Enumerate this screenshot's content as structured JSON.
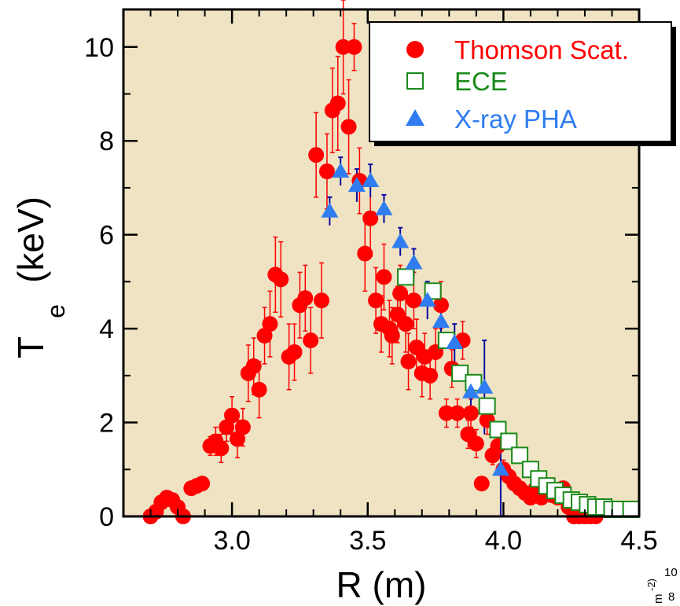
{
  "colors": {
    "plot_bg": "#efe3c3",
    "thomson": "#ff0000",
    "ece": "#1a8a1a",
    "xray": "#2f7df0",
    "xray_err": "#0a0aa0"
  },
  "chart_data": {
    "type": "scatter",
    "xlabel": "R (m)",
    "ylabel_main": "T",
    "ylabel_sub": "e",
    "ylabel_unit": "(keV)",
    "xlim": [
      2.6,
      4.5
    ],
    "ylim": [
      0,
      10.8
    ],
    "x_ticks": [
      {
        "value": 3.0,
        "label": "3.0"
      },
      {
        "value": 3.5,
        "label": "3.5"
      },
      {
        "value": 4.0,
        "label": "4.0"
      },
      {
        "value": 4.5,
        "label": "4.5"
      }
    ],
    "y_ticks": [
      {
        "value": 0,
        "label": "0"
      },
      {
        "value": 2,
        "label": "2"
      },
      {
        "value": 4,
        "label": "4"
      },
      {
        "value": 6,
        "label": "6"
      },
      {
        "value": 8,
        "label": "8"
      },
      {
        "value": 10,
        "label": "10"
      }
    ],
    "legend_position": "top-right",
    "series": [
      {
        "name": "Thomson Scat.",
        "marker": "filled-circle",
        "points": [
          [
            2.7,
            0.0,
            0.0
          ],
          [
            2.72,
            0.1,
            0.0
          ],
          [
            2.74,
            0.3,
            0.0
          ],
          [
            2.76,
            0.4,
            0.0
          ],
          [
            2.78,
            0.35,
            0.0
          ],
          [
            2.8,
            0.2,
            0.0
          ],
          [
            2.82,
            0.0,
            0.0
          ],
          [
            2.85,
            0.6,
            0.0
          ],
          [
            2.87,
            0.65,
            0.0
          ],
          [
            2.89,
            0.7,
            0.0
          ],
          [
            2.92,
            1.5,
            0.2
          ],
          [
            2.94,
            1.6,
            0.3
          ],
          [
            2.96,
            1.45,
            0.3
          ],
          [
            2.98,
            1.9,
            0.3
          ],
          [
            3.0,
            2.15,
            0.4
          ],
          [
            3.02,
            1.65,
            0.4
          ],
          [
            3.04,
            1.9,
            0.4
          ],
          [
            3.06,
            3.05,
            0.6
          ],
          [
            3.08,
            3.2,
            0.6
          ],
          [
            3.1,
            2.7,
            0.6
          ],
          [
            3.12,
            3.85,
            0.6
          ],
          [
            3.14,
            4.1,
            0.7
          ],
          [
            3.16,
            5.15,
            0.8
          ],
          [
            3.18,
            5.05,
            0.8
          ],
          [
            3.21,
            3.4,
            0.7
          ],
          [
            3.23,
            3.5,
            0.6
          ],
          [
            3.25,
            4.5,
            0.7
          ],
          [
            3.27,
            4.65,
            0.7
          ],
          [
            3.29,
            3.75,
            0.7
          ],
          [
            3.31,
            7.7,
            0.9
          ],
          [
            3.33,
            4.6,
            0.8
          ],
          [
            3.35,
            7.35,
            0.8
          ],
          [
            3.37,
            8.65,
            0.9
          ],
          [
            3.39,
            8.8,
            1.0
          ],
          [
            3.41,
            10.0,
            1.0
          ],
          [
            3.43,
            8.3,
            1.0
          ],
          [
            3.45,
            10.0,
            0.5
          ],
          [
            3.47,
            7.15,
            0.7
          ],
          [
            3.49,
            5.6,
            0.8
          ],
          [
            3.51,
            6.35,
            0.8
          ],
          [
            3.53,
            4.6,
            0.7
          ],
          [
            3.55,
            4.1,
            0.6
          ],
          [
            3.56,
            5.1,
            0.7
          ],
          [
            3.58,
            4.0,
            0.6
          ],
          [
            3.59,
            3.85,
            0.6
          ],
          [
            3.61,
            4.3,
            0.6
          ],
          [
            3.62,
            4.75,
            0.6
          ],
          [
            3.64,
            4.1,
            0.6
          ],
          [
            3.65,
            3.3,
            0.6
          ],
          [
            3.67,
            4.6,
            0.6
          ],
          [
            3.68,
            3.6,
            0.6
          ],
          [
            3.7,
            3.05,
            0.5
          ],
          [
            3.71,
            3.4,
            0.5
          ],
          [
            3.73,
            3.0,
            0.5
          ],
          [
            3.75,
            3.5,
            0.5
          ],
          [
            3.77,
            4.5,
            0.5
          ],
          [
            3.79,
            2.2,
            0.3
          ],
          [
            3.81,
            3.15,
            0.4
          ],
          [
            3.83,
            2.2,
            0.3
          ],
          [
            3.85,
            3.75,
            0.4
          ],
          [
            3.87,
            1.75,
            0.3
          ],
          [
            3.88,
            2.2,
            0.3
          ],
          [
            3.9,
            1.55,
            0.3
          ],
          [
            3.92,
            0.7,
            0.0
          ],
          [
            3.94,
            2.05,
            0.3
          ],
          [
            3.96,
            1.3,
            0.2
          ],
          [
            3.98,
            1.5,
            0.2
          ],
          [
            4.0,
            1.0,
            0.2
          ],
          [
            4.02,
            0.85,
            0.1
          ],
          [
            4.04,
            0.7,
            0.1
          ],
          [
            4.06,
            0.6,
            0.1
          ],
          [
            4.08,
            0.5,
            0.1
          ],
          [
            4.1,
            0.4,
            0.1
          ],
          [
            4.12,
            0.6,
            0.1
          ],
          [
            4.14,
            0.4,
            0.1
          ],
          [
            4.16,
            0.55,
            0.1
          ],
          [
            4.18,
            0.45,
            0.1
          ],
          [
            4.2,
            0.4,
            0.1
          ],
          [
            4.22,
            0.6,
            0.1
          ],
          [
            4.24,
            0.2,
            0.0
          ],
          [
            4.26,
            0.0,
            0.0
          ],
          [
            4.28,
            0.0,
            0.0
          ],
          [
            4.3,
            0.0,
            0.0
          ],
          [
            4.32,
            0.0,
            0.0
          ],
          [
            4.34,
            0.0,
            0.0
          ]
        ]
      },
      {
        "name": "ECE",
        "marker": "open-square",
        "points": [
          [
            3.64,
            5.1
          ],
          [
            3.74,
            4.8
          ],
          [
            3.79,
            3.75
          ],
          [
            3.84,
            3.05
          ],
          [
            3.89,
            2.85
          ],
          [
            3.94,
            2.35
          ],
          [
            3.98,
            1.85
          ],
          [
            4.02,
            1.6
          ],
          [
            4.06,
            1.3
          ],
          [
            4.1,
            1.0
          ],
          [
            4.13,
            0.8
          ],
          [
            4.16,
            0.65
          ],
          [
            4.19,
            0.55
          ],
          [
            4.22,
            0.45
          ],
          [
            4.25,
            0.35
          ],
          [
            4.28,
            0.3
          ],
          [
            4.31,
            0.25
          ],
          [
            4.34,
            0.2
          ],
          [
            4.37,
            0.2
          ],
          [
            4.4,
            0.15
          ],
          [
            4.43,
            0.15
          ],
          [
            4.47,
            0.15
          ]
        ]
      },
      {
        "name": "X-ray PHA",
        "marker": "filled-triangle",
        "points": [
          [
            3.36,
            6.5,
            0.3
          ],
          [
            3.4,
            7.35,
            0.3
          ],
          [
            3.46,
            7.05,
            0.35
          ],
          [
            3.51,
            7.15,
            0.35
          ],
          [
            3.56,
            6.55,
            0.3
          ],
          [
            3.62,
            5.85,
            0.3
          ],
          [
            3.67,
            5.4,
            0.3
          ],
          [
            3.72,
            4.6,
            0.4
          ],
          [
            3.77,
            4.15,
            0.4
          ],
          [
            3.82,
            3.7,
            0.4
          ],
          [
            3.88,
            2.65,
            0.35
          ],
          [
            3.93,
            2.75,
            1.0
          ],
          [
            3.99,
            1.0,
            1.0
          ]
        ]
      }
    ]
  },
  "corner_label": {
    "number": "10",
    "number_small": "8",
    "unit": "m",
    "exp": "-2)"
  }
}
